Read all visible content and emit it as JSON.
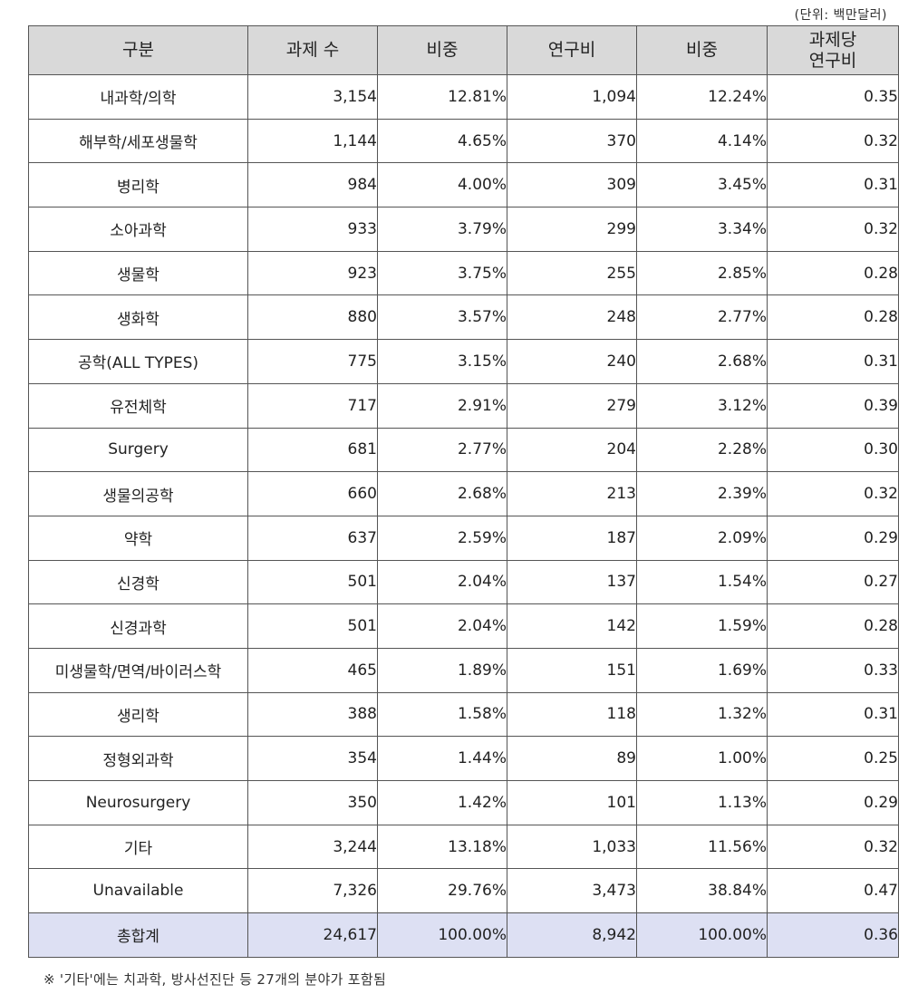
{
  "unit_note": "(단위: 백만달러)",
  "headers": [
    "구분",
    "과제 수",
    "비중",
    "연구비",
    "비중",
    "과제당\n연구비"
  ],
  "rows": [
    [
      "내과학/의학",
      "3,154",
      "12.81%",
      "1,094",
      "12.24%",
      "0.35"
    ],
    [
      "해부학/세포생물학",
      "1,144",
      "4.65%",
      "370",
      "4.14%",
      "0.32"
    ],
    [
      "병리학",
      "984",
      "4.00%",
      "309",
      "3.45%",
      "0.31"
    ],
    [
      "소아과학",
      "933",
      "3.79%",
      "299",
      "3.34%",
      "0.32"
    ],
    [
      "생물학",
      "923",
      "3.75%",
      "255",
      "2.85%",
      "0.28"
    ],
    [
      "생화학",
      "880",
      "3.57%",
      "248",
      "2.77%",
      "0.28"
    ],
    [
      "공학(ALL TYPES)",
      "775",
      "3.15%",
      "240",
      "2.68%",
      "0.31"
    ],
    [
      "유전체학",
      "717",
      "2.91%",
      "279",
      "3.12%",
      "0.39"
    ],
    [
      "Surgery",
      "681",
      "2.77%",
      "204",
      "2.28%",
      "0.30"
    ],
    [
      "생물의공학",
      "660",
      "2.68%",
      "213",
      "2.39%",
      "0.32"
    ],
    [
      "약학",
      "637",
      "2.59%",
      "187",
      "2.09%",
      "0.29"
    ],
    [
      "신경학",
      "501",
      "2.04%",
      "137",
      "1.54%",
      "0.27"
    ],
    [
      "신경과학",
      "501",
      "2.04%",
      "142",
      "1.59%",
      "0.28"
    ],
    [
      "미생물학/면역/바이러스학",
      "465",
      "1.89%",
      "151",
      "1.69%",
      "0.33"
    ],
    [
      "생리학",
      "388",
      "1.58%",
      "118",
      "1.32%",
      "0.31"
    ],
    [
      "정형외과학",
      "354",
      "1.44%",
      "89",
      "1.00%",
      "0.25"
    ],
    [
      "Neurosurgery",
      "350",
      "1.42%",
      "101",
      "1.13%",
      "0.29"
    ],
    [
      "기타",
      "3,244",
      "13.18%",
      "1,033",
      "11.56%",
      "0.32"
    ],
    [
      "Unavailable",
      "7,326",
      "29.76%",
      "3,473",
      "38.84%",
      "0.47"
    ]
  ],
  "total": [
    "총합계",
    "24,617",
    "100.00%",
    "8,942",
    "100.00%",
    "0.36"
  ],
  "colors": {
    "header_bg": "#d9d9d9",
    "total_bg": "#dde0f3",
    "border": "#555555"
  },
  "footnote": "※ '기타'에는 치과학, 방사선진단 등 27개의 분야가 포함됨"
}
